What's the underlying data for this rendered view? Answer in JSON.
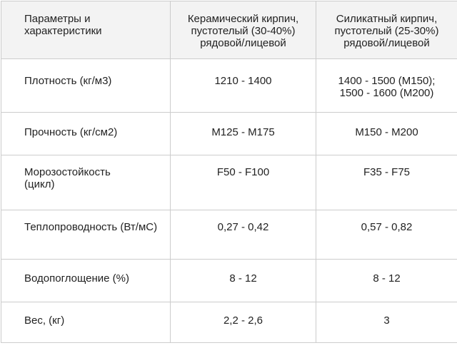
{
  "table": {
    "header": {
      "param": "Параметры и характеристики",
      "ceramic": [
        "Керамический кирпич,",
        "пустотелый (30-40%)",
        "рядовой/лицевой"
      ],
      "silicate": [
        "Силикатный кирпич,",
        "пустотелый (25-30%)",
        "рядовой/лицевой"
      ]
    },
    "rows": [
      {
        "param": "Плотность (кг/м3)",
        "ceramic": "1210 - 1400",
        "silicate": [
          "1400 - 1500 (М150);",
          "1500 - 1600 (М200)"
        ]
      },
      {
        "param": "Прочность (кг/см2)",
        "ceramic": "М125 - М175",
        "silicate": "М150 - М200"
      },
      {
        "param": "Морозостойкость (цикл)",
        "ceramic": "F50 - F100",
        "silicate": "F35 - F75"
      },
      {
        "param": "Теплопроводность (Вт/мС)",
        "ceramic": "0,27 - 0,42",
        "silicate": "0,57 - 0,82"
      },
      {
        "param": "Водопоглощение (%)",
        "ceramic": "8 - 12",
        "silicate": "8 - 12"
      },
      {
        "param": "Вес, (кг)",
        "ceramic": "2,2 - 2,6",
        "silicate": "3"
      }
    ]
  }
}
